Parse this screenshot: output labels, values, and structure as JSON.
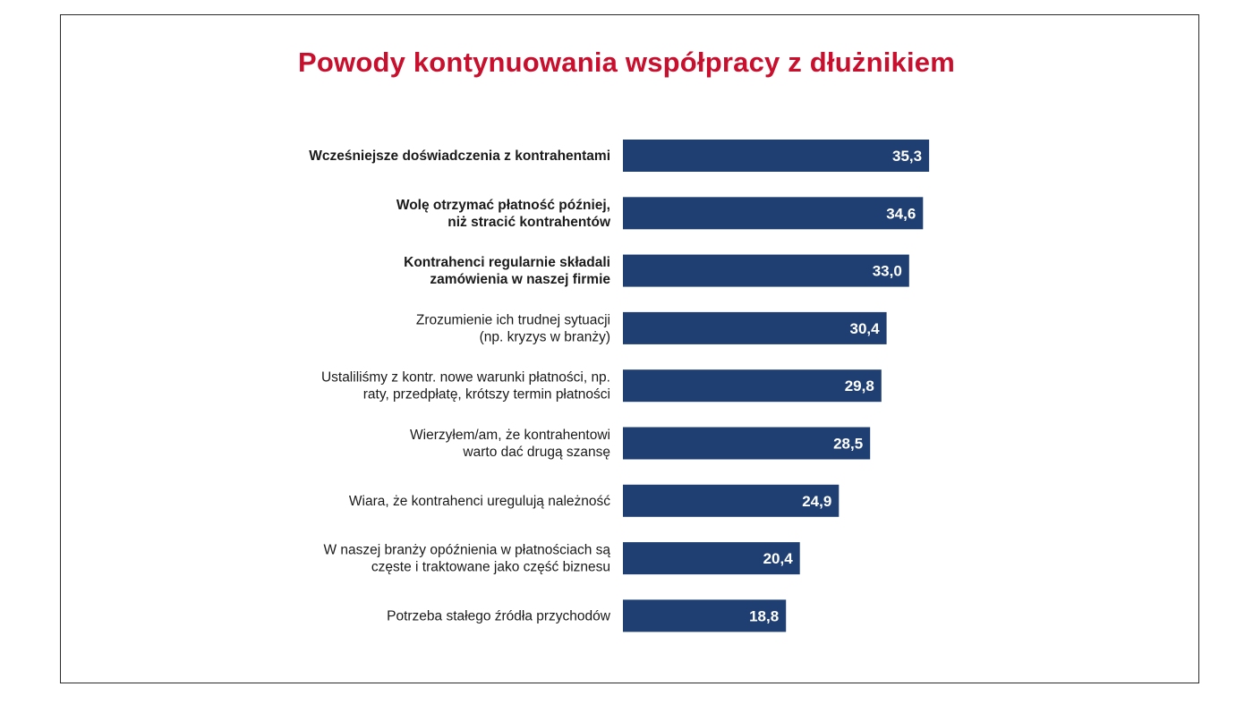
{
  "chart_data": {
    "type": "bar",
    "orientation": "horizontal",
    "title": "Powody kontynuowania współpracy z dłużnikiem",
    "categories": [
      [
        "Wcześniejsze doświadczenia z kontrahentami"
      ],
      [
        "Wolę otrzymać płatność później,",
        "niż stracić kontrahentów"
      ],
      [
        "Kontrahenci regularnie składali",
        "zamówienia w naszej firmie"
      ],
      [
        "Zrozumienie ich trudnej sytuacji",
        "(np. kryzys w branży)"
      ],
      [
        "Ustaliliśmy z kontr. nowe warunki płatności, np.",
        "raty, przedpłatę, krótszy termin płatności"
      ],
      [
        "Wierzyłem/am, że kontrahentowi",
        "warto dać drugą szansę"
      ],
      [
        "Wiara, że kontrahenci uregulują należność"
      ],
      [
        "W naszej branży opóźnienia w płatnościach są",
        "częste i traktowane jako część biznesu"
      ],
      [
        "Potrzeba stałego źródła przychodów"
      ]
    ],
    "bold_categories": [
      true,
      true,
      true,
      false,
      false,
      false,
      false,
      false,
      false
    ],
    "values": [
      35.3,
      34.6,
      33.0,
      30.4,
      29.8,
      28.5,
      24.9,
      20.4,
      18.8
    ],
    "value_labels": [
      "35,3",
      "34,6",
      "33,0",
      "30,4",
      "29,8",
      "28,5",
      "24,9",
      "20,4",
      "18,8"
    ],
    "xlim": [
      0,
      100
    ],
    "grid": false,
    "legend": "none",
    "bar_color": "#1f3f73",
    "title_color": "#c8102e"
  }
}
